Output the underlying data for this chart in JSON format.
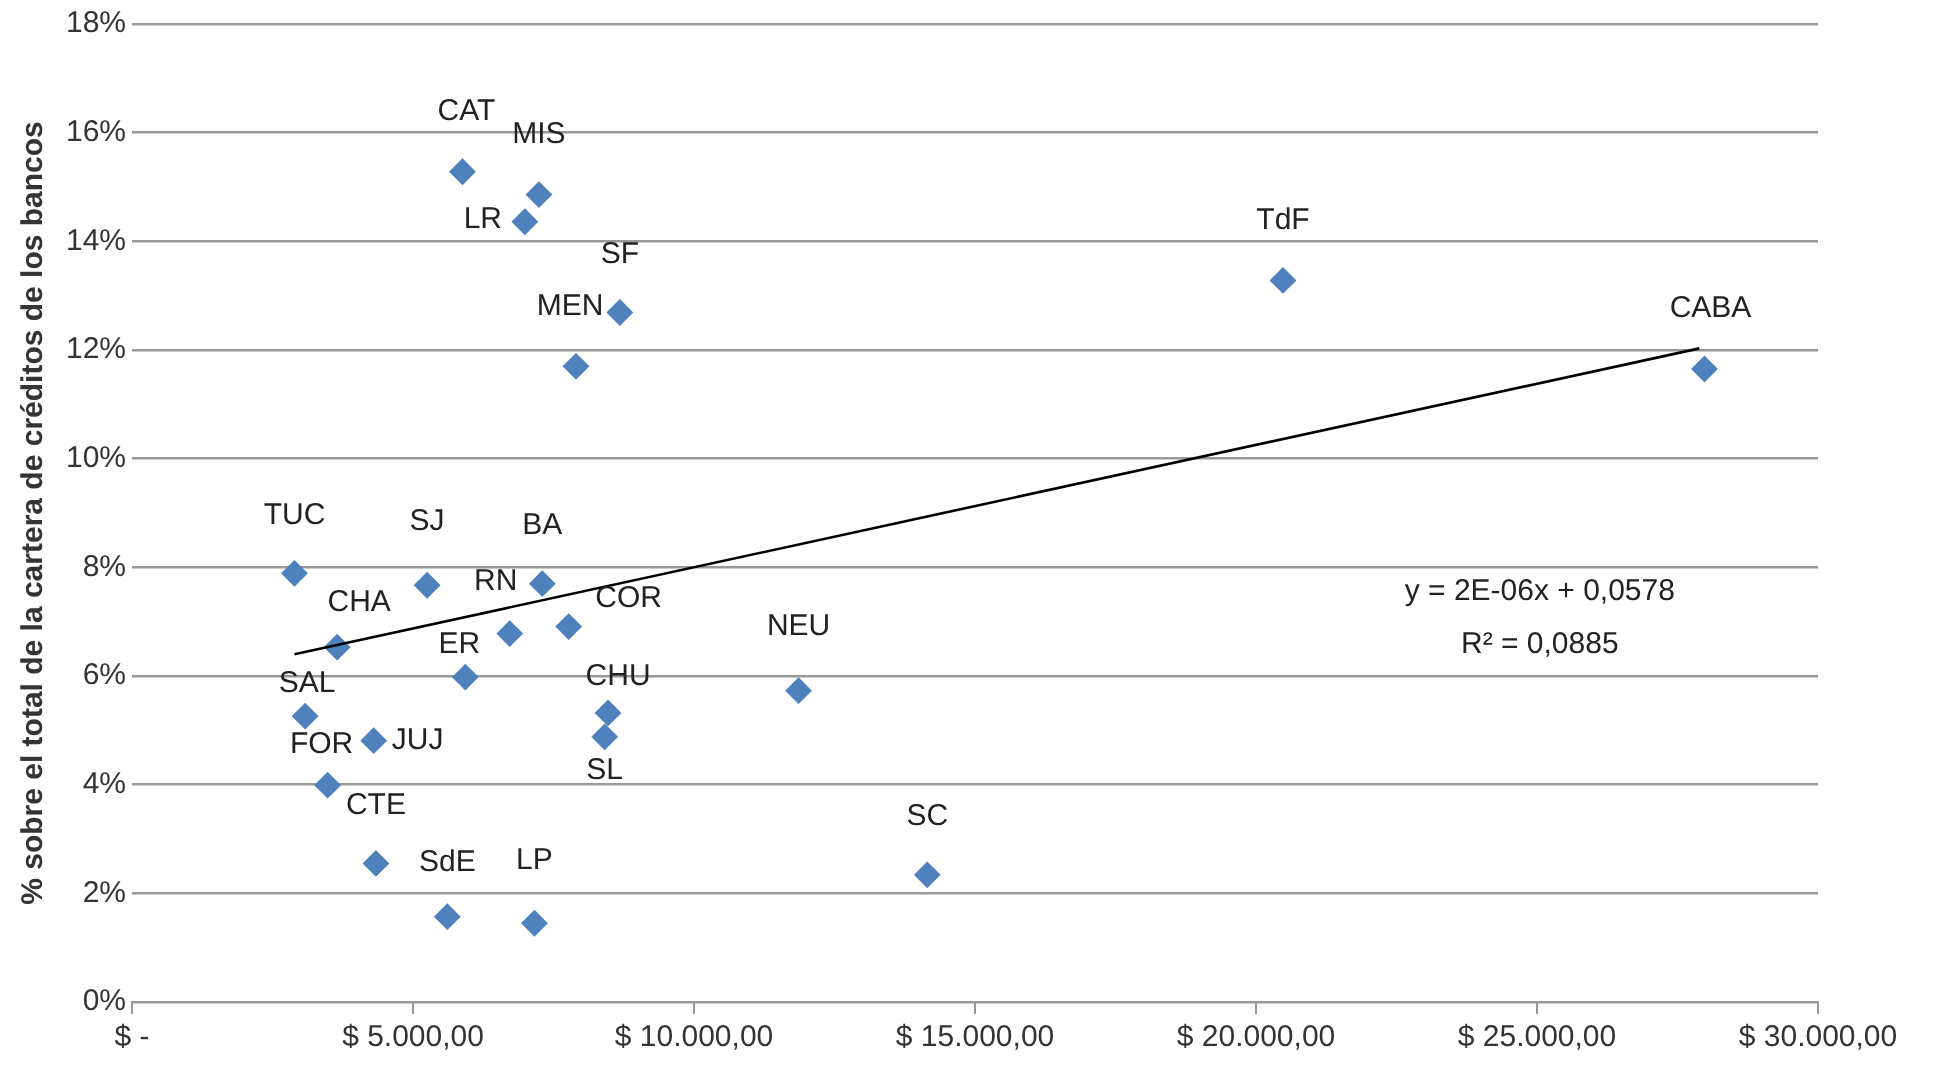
{
  "chart_data": {
    "type": "scatter",
    "ylabel": "% sobre el total de la cartera de créditos de los bancos",
    "xlim": [
      0,
      30000
    ],
    "xticks": [
      {
        "value": 0,
        "label": "$ -"
      },
      {
        "value": 5000,
        "label": "$ 5.000,00"
      },
      {
        "value": 10000,
        "label": "$ 10.000,00"
      },
      {
        "value": 15000,
        "label": "$ 15.000,00"
      },
      {
        "value": 20000,
        "label": "$ 20.000,00"
      },
      {
        "value": 25000,
        "label": "$ 25.000,00"
      },
      {
        "value": 30000,
        "label": "$ 30.000,00"
      }
    ],
    "ylim": [
      0,
      18
    ],
    "yticks": [
      {
        "value": 0,
        "label": "0%"
      },
      {
        "value": 2,
        "label": "2%"
      },
      {
        "value": 4,
        "label": "4%"
      },
      {
        "value": 6,
        "label": "6%"
      },
      {
        "value": 8,
        "label": "8%"
      },
      {
        "value": 10,
        "label": "10%"
      },
      {
        "value": 12,
        "label": "12%"
      },
      {
        "value": 14,
        "label": "14%"
      },
      {
        "value": 16,
        "label": "16%"
      },
      {
        "value": 18,
        "label": "18%"
      }
    ],
    "grid": "y",
    "legend": false,
    "marker": "diamond",
    "series": [
      {
        "color": "#4f81bd",
        "x": [
          2890,
          5250,
          7300,
          6720,
          7770,
          3650,
          5930,
          11860,
          8470,
          8410,
          3080,
          4300,
          3480,
          4340,
          5610,
          7160,
          5880,
          7240,
          6990,
          8680,
          7900,
          20480,
          27980,
          14150
        ],
        "values": [
          7.89,
          7.67,
          7.7,
          6.78,
          6.91,
          6.53,
          5.98,
          5.73,
          5.32,
          4.88,
          5.26,
          4.81,
          3.99,
          2.55,
          1.57,
          1.45,
          15.28,
          14.86,
          14.36,
          12.69,
          11.7,
          13.28,
          11.65,
          2.34
        ]
      },
      {
        "type": "line",
        "color": "#000000",
        "marker": "none",
        "x": [
          2890,
          27890
        ],
        "values": [
          6.4,
          12.03
        ]
      }
    ],
    "annotations": [
      {
        "text": "TUC",
        "x": 2890,
        "y": 7.89
      },
      {
        "text": "SJ",
        "x": 5250,
        "y": 7.67
      },
      {
        "text": "BA",
        "x": 7300,
        "y": 7.7
      },
      {
        "text": "RN",
        "x": 6720,
        "y": 6.78
      },
      {
        "text": "COR",
        "x": 7770,
        "y": 6.91
      },
      {
        "text": "CHA",
        "x": 3650,
        "y": 6.53
      },
      {
        "text": "ER",
        "x": 5930,
        "y": 5.98
      },
      {
        "text": "NEU",
        "x": 11860,
        "y": 5.73
      },
      {
        "text": "CHU",
        "x": 8470,
        "y": 5.32
      },
      {
        "text": "SL",
        "x": 8410,
        "y": 4.88
      },
      {
        "text": "SAL",
        "x": 3080,
        "y": 5.26
      },
      {
        "text": "JUJ",
        "x": 4300,
        "y": 4.81
      },
      {
        "text": "FOR",
        "x": 3480,
        "y": 3.99
      },
      {
        "text": "CTE",
        "x": 4340,
        "y": 2.55
      },
      {
        "text": "SdE",
        "x": 5610,
        "y": 1.57
      },
      {
        "text": "LP",
        "x": 7160,
        "y": 1.45
      },
      {
        "text": "CAT",
        "x": 5880,
        "y": 15.28
      },
      {
        "text": "MIS",
        "x": 7240,
        "y": 14.86
      },
      {
        "text": "LR",
        "x": 6990,
        "y": 14.36
      },
      {
        "text": "SF",
        "x": 8680,
        "y": 12.69
      },
      {
        "text": "MEN",
        "x": 7900,
        "y": 11.7
      },
      {
        "text": "TdF",
        "x": 20480,
        "y": 13.28
      },
      {
        "text": "CABA",
        "x": 27980,
        "y": 11.65
      },
      {
        "text": "SC",
        "x": 14150,
        "y": 2.34
      },
      "y = 2E-06x + 0,0578",
      "R² = 0,0885"
    ]
  }
}
